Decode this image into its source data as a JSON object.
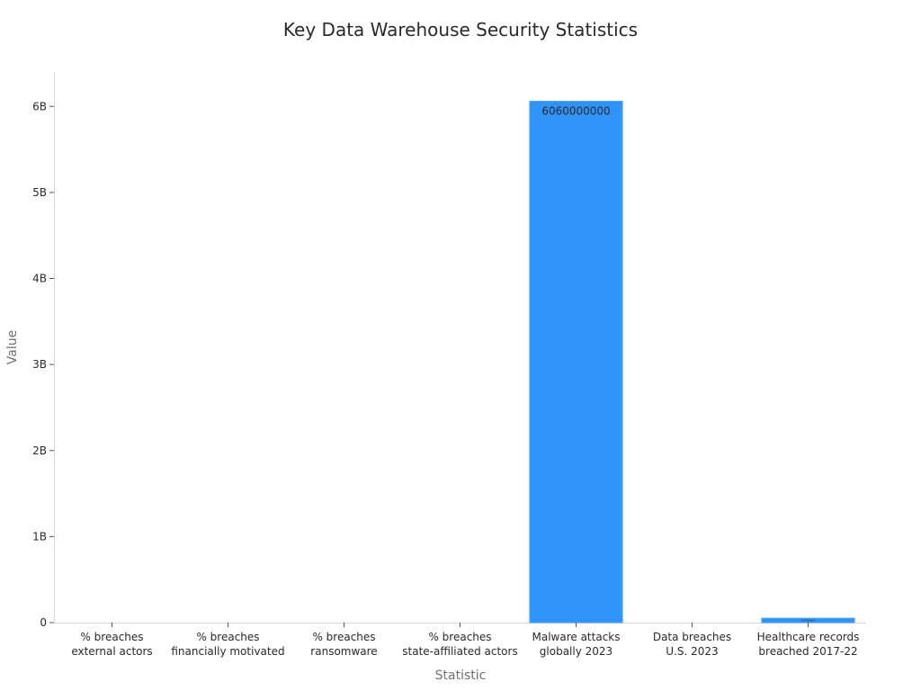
{
  "chart_data": {
    "type": "bar",
    "title": "Key Data Warehouse Security Statistics",
    "xlabel": "Statistic",
    "ylabel": "Value",
    "categories": [
      [
        "% breaches",
        "external actors"
      ],
      [
        "% breaches",
        "financially motivated"
      ],
      [
        "% breaches",
        "ransomware"
      ],
      [
        "% breaches",
        "state-affiliated actors"
      ],
      [
        "Malware attacks",
        "globally 2023"
      ],
      [
        "Data breaches",
        "U.S. 2023"
      ],
      [
        "Healthcare records",
        "breached 2017-22"
      ]
    ],
    "values": [
      0,
      0,
      0,
      0,
      6060000000,
      0,
      51000000
    ],
    "data_labels": [
      "",
      "",
      "",
      "",
      "6060000000",
      "",
      "51000000"
    ],
    "ylim": [
      0,
      6400000000
    ],
    "yticks": [
      0,
      1000000000,
      2000000000,
      3000000000,
      4000000000,
      5000000000,
      6000000000
    ],
    "ytick_labels": [
      "0",
      "1B",
      "2B",
      "3B",
      "4B",
      "5B",
      "6B"
    ],
    "bar_color": "#3093f7",
    "grid": false,
    "legend": "none"
  }
}
